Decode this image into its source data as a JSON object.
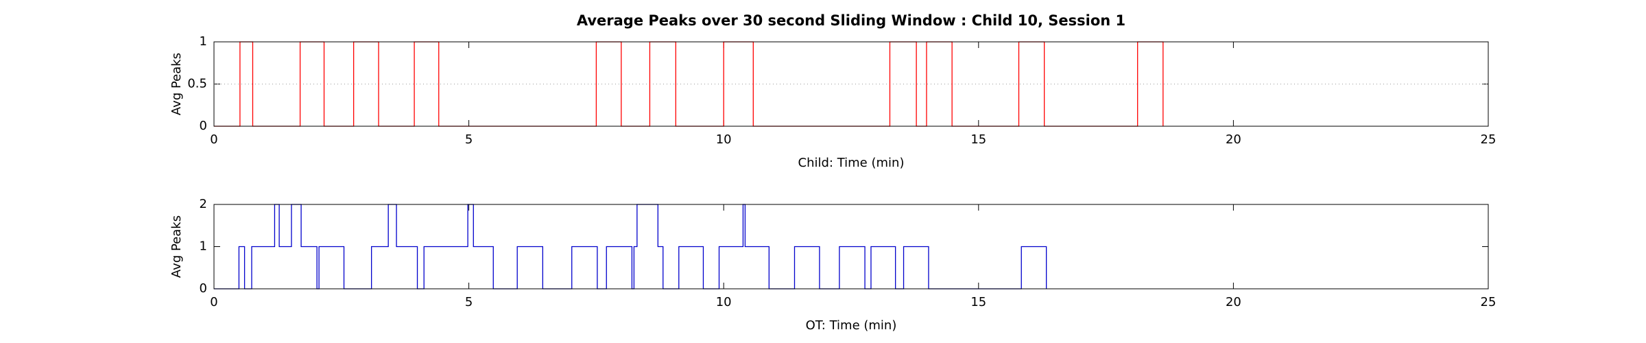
{
  "chart_data": [
    {
      "type": "line",
      "title": "Average Peaks over 30 second Sliding Window : Child 10, Session 1",
      "xlabel": "Child: Time (min)",
      "ylabel": "Avg Peaks",
      "xlim": [
        0,
        25
      ],
      "ylim": [
        0,
        1
      ],
      "xticks": [
        0,
        5,
        10,
        15,
        20,
        25
      ],
      "yticks": [
        0,
        0.5,
        1
      ],
      "grid": true,
      "x": [
        0,
        0.51,
        0.51,
        0.76,
        0.76,
        1.69,
        1.69,
        2.16,
        2.16,
        2.74,
        2.74,
        3.23,
        3.23,
        3.93,
        3.93,
        4.41,
        4.41,
        7.5,
        7.5,
        7.99,
        7.99,
        8.55,
        8.55,
        9.06,
        9.06,
        10.0,
        10.0,
        10.58,
        10.58,
        13.26,
        13.26,
        13.78,
        13.78,
        13.98,
        13.98,
        14.48,
        14.48,
        15.79,
        15.79,
        16.29,
        16.29,
        18.12,
        18.12,
        18.62,
        18.62
      ],
      "series": [
        {
          "color": "#ff0000",
          "values": [
            0,
            0,
            1,
            1,
            0,
            0,
            1,
            1,
            0,
            0,
            1,
            1,
            0,
            0,
            1,
            1,
            0,
            0,
            1,
            1,
            0,
            0,
            1,
            1,
            0,
            0,
            1,
            1,
            0,
            0,
            1,
            1,
            0,
            0,
            1,
            1,
            0,
            0,
            1,
            1,
            0,
            0,
            1,
            1,
            0
          ]
        }
      ]
    },
    {
      "type": "line",
      "xlabel": "OT: Time (min)",
      "ylabel": "Avg Peaks",
      "xlim": [
        0,
        25
      ],
      "ylim": [
        0,
        2
      ],
      "xticks": [
        0,
        5,
        10,
        15,
        20,
        25
      ],
      "yticks": [
        0,
        1,
        2
      ],
      "grid": false,
      "x": [
        0,
        0.49,
        0.49,
        0.6,
        0.6,
        0.74,
        0.74,
        1.19,
        1.19,
        1.28,
        1.28,
        1.52,
        1.52,
        1.71,
        1.71,
        2.02,
        2.02,
        2.06,
        2.06,
        2.55,
        2.55,
        3.09,
        3.09,
        3.42,
        3.42,
        3.58,
        3.58,
        3.99,
        3.99,
        4.12,
        4.12,
        4.98,
        4.98,
        5.09,
        5.09,
        5.48,
        5.48,
        5.95,
        5.95,
        6.45,
        6.45,
        7.02,
        7.02,
        7.52,
        7.52,
        7.7,
        7.7,
        8.2,
        8.2,
        8.24,
        8.24,
        8.3,
        8.3,
        8.71,
        8.71,
        8.81,
        8.81,
        9.12,
        9.12,
        9.6,
        9.6,
        9.91,
        9.91,
        10.38,
        10.38,
        10.42,
        10.42,
        10.89,
        10.89,
        11.39,
        11.39,
        11.88,
        11.88,
        12.27,
        12.27,
        12.77,
        12.77,
        12.89,
        12.89,
        13.37,
        13.37,
        13.53,
        13.53,
        14.02,
        14.02,
        15.84,
        15.84,
        16.33,
        16.33
      ],
      "series": [
        {
          "color": "#0000cc",
          "values": [
            0,
            0,
            1,
            1,
            0,
            0,
            1,
            1,
            2,
            2,
            1,
            1,
            2,
            2,
            1,
            1,
            0,
            0,
            1,
            1,
            0,
            0,
            1,
            1,
            2,
            2,
            1,
            1,
            0,
            0,
            1,
            1,
            2,
            2,
            1,
            1,
            0,
            0,
            1,
            1,
            0,
            0,
            1,
            1,
            0,
            0,
            1,
            1,
            0,
            0,
            1,
            1,
            2,
            2,
            1,
            1,
            0,
            0,
            1,
            1,
            0,
            0,
            1,
            1,
            2,
            2,
            1,
            1,
            0,
            0,
            1,
            1,
            0,
            0,
            1,
            1,
            0,
            0,
            1,
            1,
            0,
            0,
            1,
            1,
            0,
            0,
            1,
            1,
            0
          ]
        }
      ]
    }
  ]
}
